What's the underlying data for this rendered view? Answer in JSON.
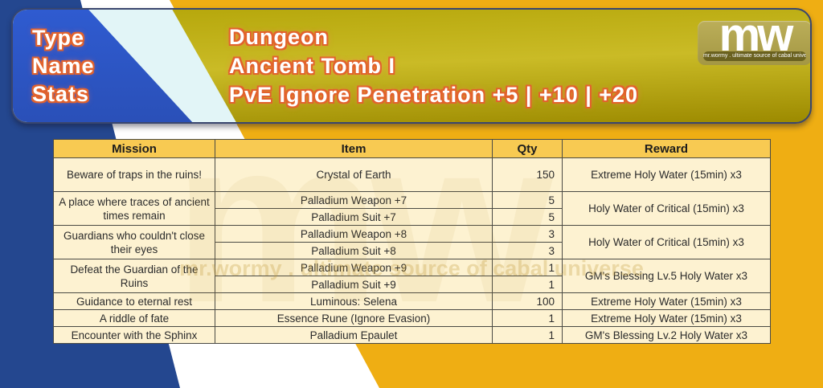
{
  "colors": {
    "bg_blue": "#24478f",
    "bg_gold": "#efae13",
    "banner_blue": "#2b54c4",
    "banner_cyan": "#e2f5f7",
    "banner_gold_top": "#b5a60a",
    "banner_gold_mid": "#cabb26",
    "banner_gold_bottom": "#9c8a00",
    "outline_orange": "#e2622c",
    "header_bg": "#f8ca52",
    "cell_bg": "#fdf2d1",
    "grid": "#4a4a44"
  },
  "banner": {
    "label_lines": [
      "Type",
      "Name",
      "Stats"
    ],
    "title_lines": [
      "Dungeon",
      "Ancient Tomb I",
      "PvE Ignore Penetration +5 | +10 | +20"
    ],
    "logo": {
      "text": "mw",
      "tagline": "mr.wormy . ultimate source of cabal universe"
    }
  },
  "watermark": {
    "big": "mw",
    "tagline": "mr.wormy . ultimate source of cabal universe"
  },
  "table": {
    "headers": [
      "Mission",
      "Item",
      "Qty",
      "Reward"
    ],
    "rows": [
      {
        "tall": true,
        "cells": [
          {
            "col": "mission",
            "text": "Beware of traps in the ruins!"
          },
          {
            "col": "item",
            "text": "Crystal of Earth"
          },
          {
            "col": "qty",
            "text": "150"
          },
          {
            "col": "reward",
            "text": "Extreme Holy Water (15min) x3"
          }
        ]
      },
      {
        "cells": [
          {
            "col": "mission",
            "text": "A place where traces of ancient times remain",
            "rs": 2
          },
          {
            "col": "item",
            "text": "Palladium Weapon +7"
          },
          {
            "col": "qty",
            "text": "5"
          },
          {
            "col": "reward",
            "text": "Holy Water of Critical (15min) x3",
            "rs": 2
          }
        ]
      },
      {
        "cells": [
          {
            "col": "item",
            "text": "Palladium Suit +7"
          },
          {
            "col": "qty",
            "text": "5"
          }
        ]
      },
      {
        "cells": [
          {
            "col": "mission",
            "text": "Guardians who couldn't close their eyes",
            "rs": 2
          },
          {
            "col": "item",
            "text": "Palladium Weapon +8"
          },
          {
            "col": "qty",
            "text": "3"
          },
          {
            "col": "reward",
            "text": "Holy Water of Critical (15min) x3",
            "rs": 2
          }
        ]
      },
      {
        "cells": [
          {
            "col": "item",
            "text": "Palladium Suit +8"
          },
          {
            "col": "qty",
            "text": "3"
          }
        ]
      },
      {
        "cells": [
          {
            "col": "mission",
            "text": "Defeat the Guardian of the Ruins",
            "rs": 2
          },
          {
            "col": "item",
            "text": "Palladium Weapon +9"
          },
          {
            "col": "qty",
            "text": "1"
          },
          {
            "col": "reward",
            "text": "GM's Blessing Lv.5 Holy Water x3",
            "rs": 2
          }
        ]
      },
      {
        "cells": [
          {
            "col": "item",
            "text": "Palladium Suit +9"
          },
          {
            "col": "qty",
            "text": "1"
          }
        ]
      },
      {
        "cells": [
          {
            "col": "mission",
            "text": "Guidance to eternal rest"
          },
          {
            "col": "item",
            "text": "Luminous: Selena"
          },
          {
            "col": "qty",
            "text": "100"
          },
          {
            "col": "reward",
            "text": "Extreme Holy Water (15min) x3"
          }
        ]
      },
      {
        "cells": [
          {
            "col": "mission",
            "text": "A riddle of fate"
          },
          {
            "col": "item",
            "text": "Essence Rune (Ignore Evasion)"
          },
          {
            "col": "qty",
            "text": "1"
          },
          {
            "col": "reward",
            "text": "Extreme Holy Water (15min) x3"
          }
        ]
      },
      {
        "cells": [
          {
            "col": "mission",
            "text": "Encounter with the Sphinx"
          },
          {
            "col": "item",
            "text": "Palladium Epaulet"
          },
          {
            "col": "qty",
            "text": "1"
          },
          {
            "col": "reward",
            "text": "GM's Blessing Lv.2 Holy Water x3"
          }
        ]
      }
    ]
  }
}
